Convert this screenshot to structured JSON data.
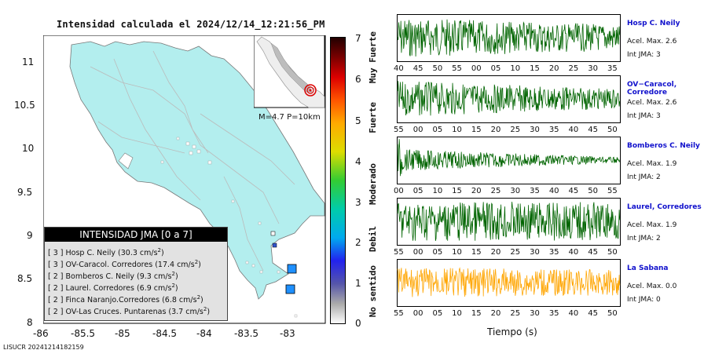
{
  "map": {
    "title": "Intensidad calculada el 2024/12/14_12:21:56_PM",
    "y_ticks": [
      "11",
      "10.5",
      "10",
      "9.5",
      "9",
      "8.5",
      "8"
    ],
    "x_ticks": [
      "-86",
      "-85.5",
      "-85",
      "-84.5",
      "-84",
      "-83.5",
      "-83"
    ],
    "inset_label": "M=4.7 P=10km",
    "footer": "LISUCR 20241214182159"
  },
  "legend": {
    "title": "INTENSIDAD JMA [0 a 7]",
    "items": [
      {
        "level": "[ 3 ]",
        "station": "Hosp C. Neily (30.3 cm/s",
        "exp": "2",
        "close": ")"
      },
      {
        "level": "[ 3 ]",
        "station": "OV-Caracol. Corredores (17.4 cm/s",
        "exp": "2",
        "close": ")"
      },
      {
        "level": "[ 2 ]",
        "station": "Bomberos C. Neily (9.3 cm/s",
        "exp": "2",
        "close": ")"
      },
      {
        "level": "[ 2 ]",
        "station": "Laurel. Corredores (6.9 cm/s",
        "exp": "2",
        "close": ")"
      },
      {
        "level": "[ 2 ]",
        "station": "Finca Naranjo.Corredores (6.8 cm/s",
        "exp": "2",
        "close": ")"
      },
      {
        "level": "[ 2 ]",
        "station": "OV-Las Cruces. Puntarenas (3.7 cm/s",
        "exp": "2",
        "close": ")"
      }
    ]
  },
  "scale": {
    "ticks": [
      "7",
      "6",
      "5",
      "4",
      "3",
      "2",
      "1",
      "0"
    ],
    "labels": [
      "Muy Fuerte",
      "Fuerte",
      "Moderado",
      "Debil",
      "No sentido"
    ]
  },
  "stations": [
    {
      "name": "Hosp C. Neily",
      "acel": "Acel. Max. 2.6",
      "jma": "Int JMA: 3",
      "color": "#006400",
      "ticks": [
        "40",
        "45",
        "50",
        "55",
        "00",
        "05",
        "10",
        "15",
        "20",
        "25",
        "30",
        "35"
      ]
    },
    {
      "name": "OV−Caracol, Corredore",
      "acel": "Acel. Max. 2.6",
      "jma": "Int JMA: 3",
      "color": "#006400",
      "ticks": [
        "55",
        "00",
        "05",
        "10",
        "15",
        "20",
        "25",
        "30",
        "35",
        "40",
        "45",
        "50"
      ]
    },
    {
      "name": "Bomberos C. Neily",
      "acel": "Acel. Max. 1.9",
      "jma": "Int JMA: 2",
      "color": "#006400",
      "ticks": [
        "00",
        "05",
        "10",
        "15",
        "20",
        "25",
        "30",
        "35",
        "40",
        "45",
        "50",
        "55"
      ]
    },
    {
      "name": "Laurel, Corredores",
      "acel": "Acel. Max. 1.9",
      "jma": "Int JMA: 2",
      "color": "#006400",
      "ticks": [
        "55",
        "00",
        "05",
        "10",
        "15",
        "20",
        "25",
        "30",
        "35",
        "40",
        "45",
        "50"
      ]
    },
    {
      "name": "La Sabana",
      "acel": "Acel. Max. 0.0",
      "jma": "Int JMA: 0",
      "color": "#FFA500",
      "ticks": [
        "55",
        "00",
        "05",
        "10",
        "15",
        "20",
        "25",
        "30",
        "35",
        "40",
        "45",
        "50"
      ]
    }
  ],
  "waveform_xlabel": "Tiempo (s)"
}
